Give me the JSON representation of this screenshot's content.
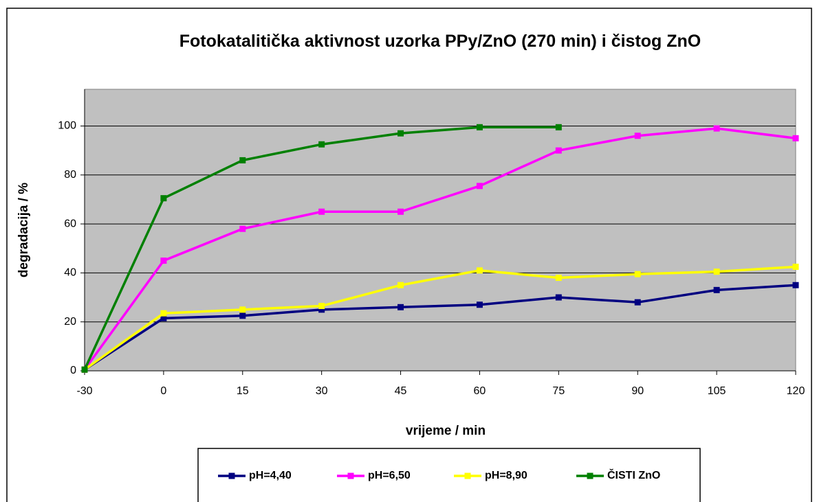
{
  "chart_data": {
    "type": "line",
    "title": "Fotokatalitička aktivnost uzorka PPy/ZnO (270 min) i čistog ZnO",
    "x_label": "vrijeme / min",
    "y_label": "degradacija / %",
    "categories": [
      "-30",
      "0",
      "15",
      "30",
      "45",
      "60",
      "75",
      "90",
      "105",
      "120"
    ],
    "series": [
      {
        "name": "pH=4,40",
        "color": "#000080",
        "values": [
          0.5,
          21.5,
          22.5,
          25,
          26,
          27,
          30,
          28,
          33,
          35
        ]
      },
      {
        "name": "pH=6,50",
        "color": "#ff00ff",
        "values": [
          0.5,
          45,
          58,
          65,
          65,
          75.5,
          90,
          96,
          99,
          95
        ]
      },
      {
        "name": "pH=8,90",
        "color": "#ffff00",
        "values": [
          0.5,
          23.5,
          25,
          26.5,
          35,
          41,
          38,
          39.5,
          40.5,
          42.5
        ]
      },
      {
        "name": "ČISTI ZnO",
        "color": "#008000",
        "values": [
          0.5,
          70.5,
          86,
          92.5,
          97,
          99.5,
          99.5,
          null,
          null,
          null
        ]
      }
    ],
    "ylim": [
      0,
      115
    ],
    "yticks": [
      0,
      20,
      40,
      60,
      80,
      100
    ],
    "grid": true,
    "plot_background": "#c0c0c0",
    "legend": "bottom"
  }
}
